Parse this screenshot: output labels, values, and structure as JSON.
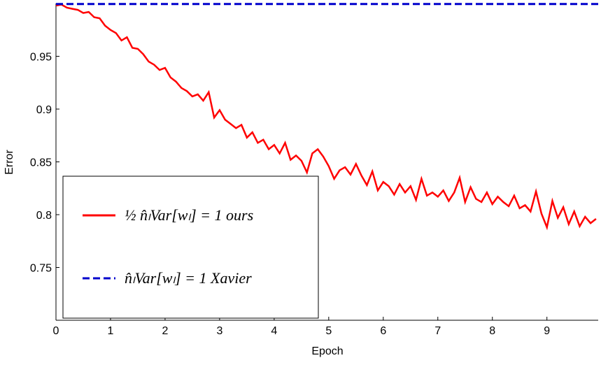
{
  "chart_data": {
    "type": "line",
    "x_label": "Epoch",
    "y_label": "Error",
    "xlim": [
      0,
      9.94
    ],
    "ylim": [
      0.7,
      1.0
    ],
    "xticks": [
      0,
      1,
      2,
      3,
      4,
      5,
      6,
      7,
      8,
      9
    ],
    "yticks": [
      0.75,
      0.8,
      0.85,
      0.9,
      0.95
    ],
    "grid": false,
    "legend": "lower left",
    "series": [
      {
        "name": "½ n̂ₗVar[wₗ] = 1   ours",
        "color": "#ff0000",
        "dash": false,
        "x": [
          0,
          0.1,
          0.2,
          0.3,
          0.4,
          0.5,
          0.6,
          0.7,
          0.8,
          0.9,
          1,
          1.1,
          1.2,
          1.3,
          1.4,
          1.5,
          1.6,
          1.7,
          1.8,
          1.9,
          2,
          2.1,
          2.2,
          2.3,
          2.4,
          2.5,
          2.6,
          2.7,
          2.8,
          2.9,
          3,
          3.1,
          3.2,
          3.3,
          3.4,
          3.5,
          3.6,
          3.7,
          3.8,
          3.9,
          4,
          4.1,
          4.2,
          4.3,
          4.4,
          4.5,
          4.6,
          4.7,
          4.8,
          4.9,
          5,
          5.1,
          5.2,
          5.3,
          5.4,
          5.5,
          5.6,
          5.7,
          5.8,
          5.9,
          6,
          6.1,
          6.2,
          6.3,
          6.4,
          6.5,
          6.6,
          6.7,
          6.8,
          6.9,
          7,
          7.1,
          7.2,
          7.3,
          7.4,
          7.5,
          7.6,
          7.7,
          7.8,
          7.9,
          8,
          8.1,
          8.2,
          8.3,
          8.4,
          8.5,
          8.6,
          8.7,
          8.8,
          8.9,
          9,
          9.1,
          9.2,
          9.3,
          9.4,
          9.5,
          9.6,
          9.7,
          9.8,
          9.9
        ],
        "values": [
          0.998,
          0.999,
          0.996,
          0.995,
          0.994,
          0.991,
          0.992,
          0.987,
          0.986,
          0.979,
          0.975,
          0.972,
          0.965,
          0.968,
          0.958,
          0.957,
          0.952,
          0.945,
          0.942,
          0.937,
          0.939,
          0.93,
          0.926,
          0.92,
          0.917,
          0.912,
          0.914,
          0.908,
          0.916,
          0.892,
          0.899,
          0.89,
          0.886,
          0.882,
          0.885,
          0.873,
          0.878,
          0.868,
          0.871,
          0.862,
          0.866,
          0.858,
          0.868,
          0.852,
          0.856,
          0.851,
          0.84,
          0.858,
          0.862,
          0.855,
          0.846,
          0.834,
          0.842,
          0.845,
          0.838,
          0.848,
          0.837,
          0.828,
          0.841,
          0.823,
          0.831,
          0.827,
          0.819,
          0.829,
          0.821,
          0.827,
          0.814,
          0.834,
          0.818,
          0.821,
          0.817,
          0.823,
          0.813,
          0.821,
          0.835,
          0.812,
          0.826,
          0.815,
          0.812,
          0.821,
          0.81,
          0.817,
          0.812,
          0.808,
          0.818,
          0.806,
          0.809,
          0.803,
          0.822,
          0.801,
          0.788,
          0.813,
          0.797,
          0.807,
          0.791,
          0.803,
          0.789,
          0.798,
          0.792,
          0.796
        ]
      },
      {
        "name": "n̂ₗVar[wₗ] = 1   Xavier",
        "color": "#0000cc",
        "dash": true,
        "x": [
          0,
          9.94
        ],
        "values": [
          0.9995,
          0.9995
        ]
      }
    ]
  }
}
